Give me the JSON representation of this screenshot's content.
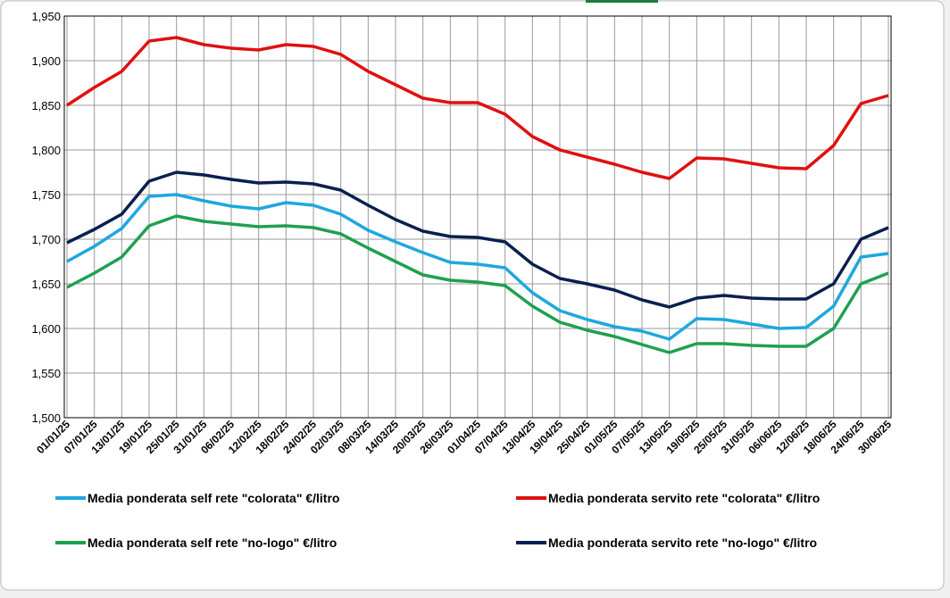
{
  "chart_data": {
    "type": "line",
    "categories": [
      "01/01/25",
      "07/01/25",
      "13/01/25",
      "19/01/25",
      "25/01/25",
      "31/01/25",
      "06/02/25",
      "12/02/25",
      "18/02/25",
      "24/02/25",
      "02/03/25",
      "08/03/25",
      "14/03/25",
      "20/03/25",
      "26/03/25",
      "01/04/25",
      "07/04/25",
      "13/04/25",
      "19/04/25",
      "25/04/25",
      "01/05/25",
      "07/05/25",
      "13/05/25",
      "19/05/25",
      "25/05/25",
      "31/05/25",
      "06/06/25",
      "12/06/25",
      "18/06/25",
      "24/06/25",
      "30/06/25"
    ],
    "series": [
      {
        "name": "Media ponderata self rete \"colorata\" €/litro",
        "color": "#1ea7e0",
        "values": [
          1.675,
          1.692,
          1.712,
          1.748,
          1.75,
          1.743,
          1.737,
          1.734,
          1.741,
          1.738,
          1.728,
          1.71,
          1.697,
          1.685,
          1.674,
          1.672,
          1.668,
          1.64,
          1.62,
          1.61,
          1.602,
          1.597,
          1.588,
          1.611,
          1.61,
          1.605,
          1.6,
          1.601,
          1.625,
          1.68,
          1.684
        ]
      },
      {
        "name": "Media ponderata servito rete \"colorata\" €/litro",
        "color": "#e01010",
        "values": [
          1.85,
          1.87,
          1.888,
          1.922,
          1.926,
          1.918,
          1.914,
          1.912,
          1.918,
          1.916,
          1.907,
          1.888,
          1.873,
          1.858,
          1.853,
          1.853,
          1.84,
          1.815,
          1.8,
          1.792,
          1.784,
          1.775,
          1.768,
          1.791,
          1.79,
          1.785,
          1.78,
          1.779,
          1.805,
          1.852,
          1.861
        ]
      },
      {
        "name": "Media ponderata self rete \"no-logo\" €/litro",
        "color": "#1ea050",
        "values": [
          1.646,
          1.662,
          1.68,
          1.715,
          1.726,
          1.72,
          1.717,
          1.714,
          1.715,
          1.713,
          1.706,
          1.69,
          1.675,
          1.66,
          1.654,
          1.652,
          1.648,
          1.625,
          1.607,
          1.598,
          1.591,
          1.582,
          1.573,
          1.583,
          1.583,
          1.581,
          1.58,
          1.58,
          1.6,
          1.65,
          1.662
        ]
      },
      {
        "name": "Media ponderata servito rete \"no-logo\" €/litro",
        "color": "#0a1f4f",
        "values": [
          1.696,
          1.711,
          1.728,
          1.765,
          1.775,
          1.772,
          1.767,
          1.763,
          1.764,
          1.762,
          1.755,
          1.738,
          1.722,
          1.709,
          1.703,
          1.702,
          1.697,
          1.672,
          1.656,
          1.65,
          1.643,
          1.632,
          1.624,
          1.634,
          1.637,
          1.634,
          1.633,
          1.633,
          1.65,
          1.7,
          1.713
        ]
      }
    ],
    "ylim": [
      1.5,
      1.95
    ],
    "yticks": [
      {
        "value": 1.5,
        "label": "1,500"
      },
      {
        "value": 1.55,
        "label": "1,550"
      },
      {
        "value": 1.6,
        "label": "1,600"
      },
      {
        "value": 1.65,
        "label": "1,650"
      },
      {
        "value": 1.7,
        "label": "1,700"
      },
      {
        "value": 1.75,
        "label": "1,750"
      },
      {
        "value": 1.8,
        "label": "1,800"
      },
      {
        "value": 1.85,
        "label": "1,850"
      },
      {
        "value": 1.9,
        "label": "1,900"
      },
      {
        "value": 1.95,
        "label": "1,950"
      }
    ],
    "grid": true
  }
}
